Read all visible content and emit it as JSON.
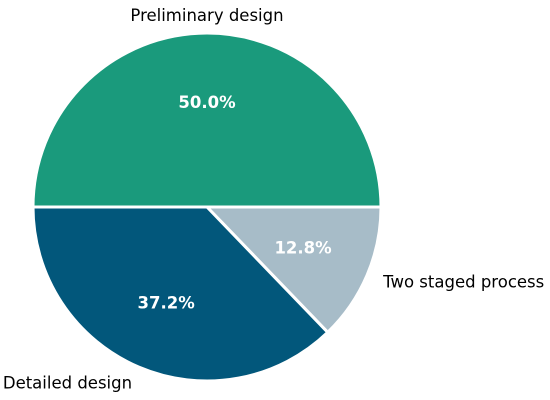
{
  "chart_data": {
    "type": "pie",
    "title": "",
    "start_angle_deg": 180,
    "direction": "clockwise",
    "slices": [
      {
        "label": "Preliminary design",
        "value": 50.0,
        "percent_label": "50.0%",
        "color": "#1a9a7c"
      },
      {
        "label": "Two staged process",
        "value": 12.8,
        "percent_label": "12.8%",
        "color": "#a7bcc8"
      },
      {
        "label": "Detailed design",
        "value": 37.2,
        "percent_label": "37.2%",
        "color": "#02577b"
      }
    ]
  }
}
